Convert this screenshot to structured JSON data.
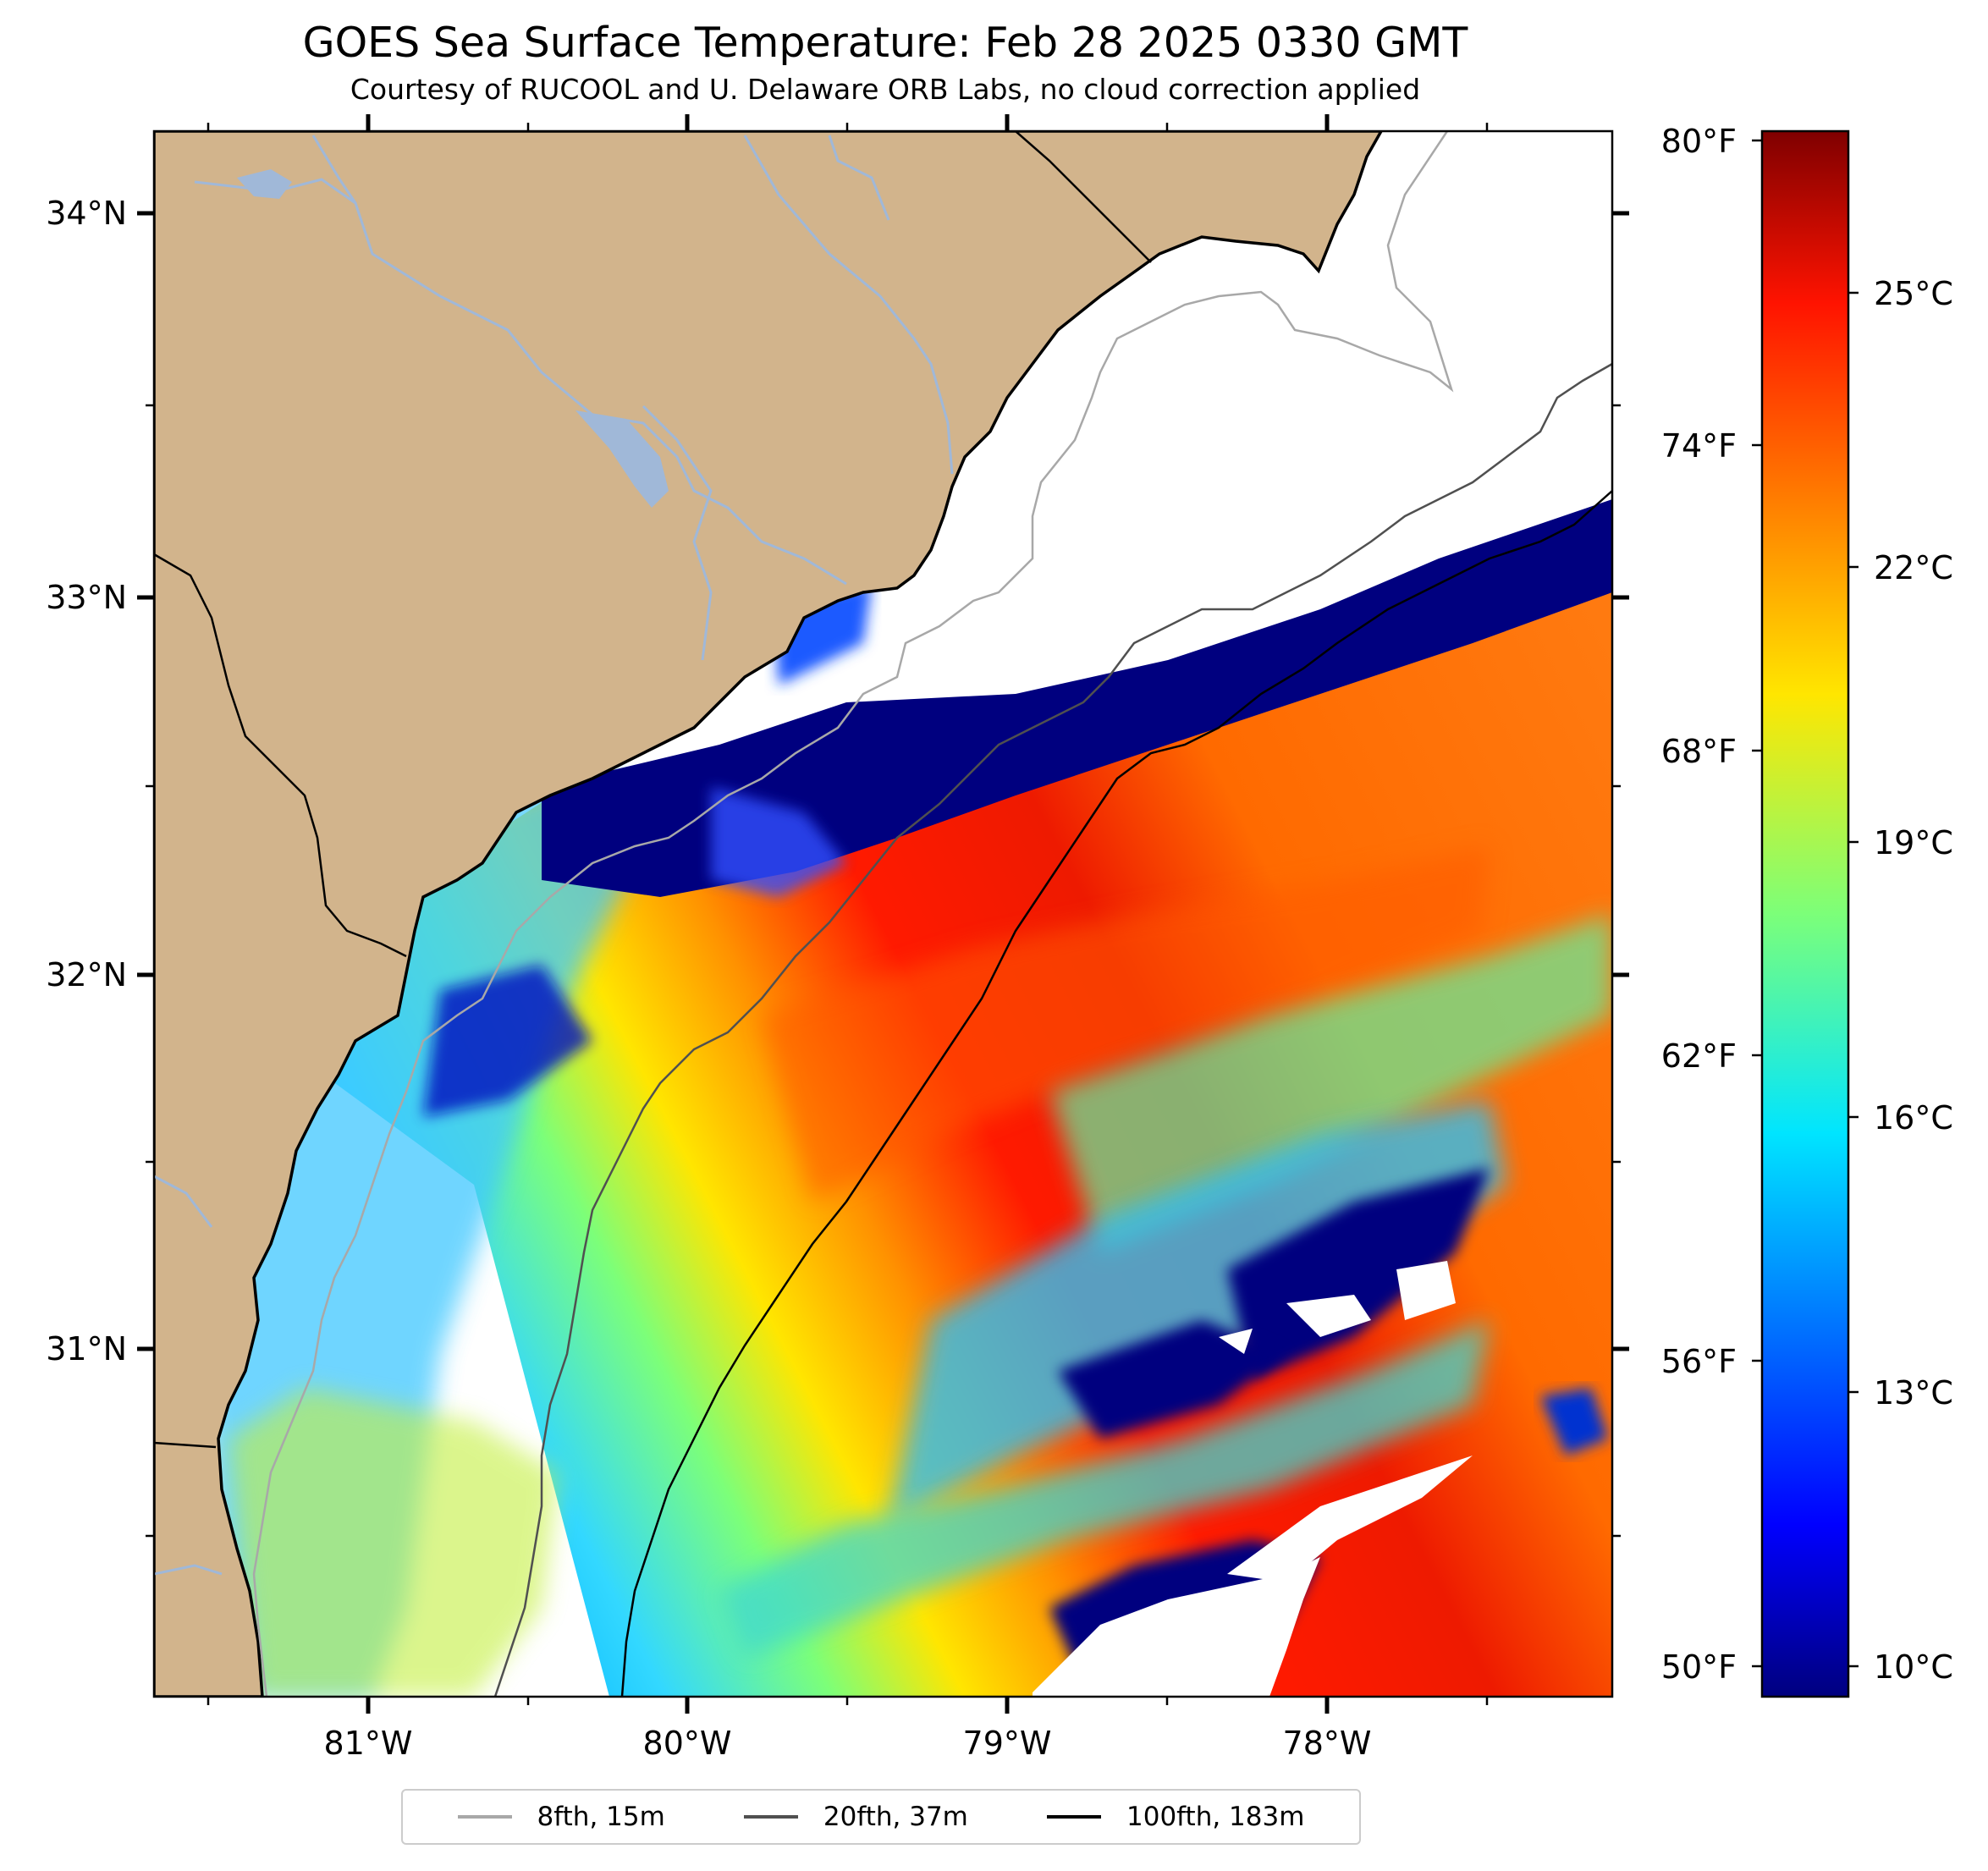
{
  "title": "GOES Sea Surface Temperature: Feb 28 2025 0330 GMT",
  "subtitle": "Courtesy of RUCOOL and U. Delaware ORB Labs, no cloud correction applied",
  "colors": {
    "land": "#d2b48c",
    "river": "#a0b8d8",
    "border": "#000000",
    "cloud_mask": "#ffffff",
    "isobath_8fth": "#a8a8a8",
    "isobath_20fth": "#505050",
    "isobath_100fth": "#000000"
  },
  "map": {
    "lon_range": [
      -81.67,
      -77.1
    ],
    "lat_range": [
      30.1,
      34.2
    ],
    "lat_labels": [
      "34°N",
      "33°N",
      "32°N",
      "31°N"
    ],
    "lon_labels": [
      "81°W",
      "80°W",
      "79°W",
      "78°W"
    ],
    "colormap": "jet"
  },
  "colorbar": {
    "celsius_labels": [
      "25°C",
      "22°C",
      "19°C",
      "16°C",
      "13°C",
      "10°C"
    ],
    "fahrenheit_labels": [
      "80°F",
      "74°F",
      "68°F",
      "62°F",
      "56°F",
      "50°F"
    ],
    "range_celsius": [
      9.5,
      27.5
    ]
  },
  "legend": [
    {
      "label": "8fth, 15m",
      "color": "#a8a8a8"
    },
    {
      "label": "20fth, 37m",
      "color": "#505050"
    },
    {
      "label": "100fth, 183m",
      "color": "#000000"
    }
  ]
}
